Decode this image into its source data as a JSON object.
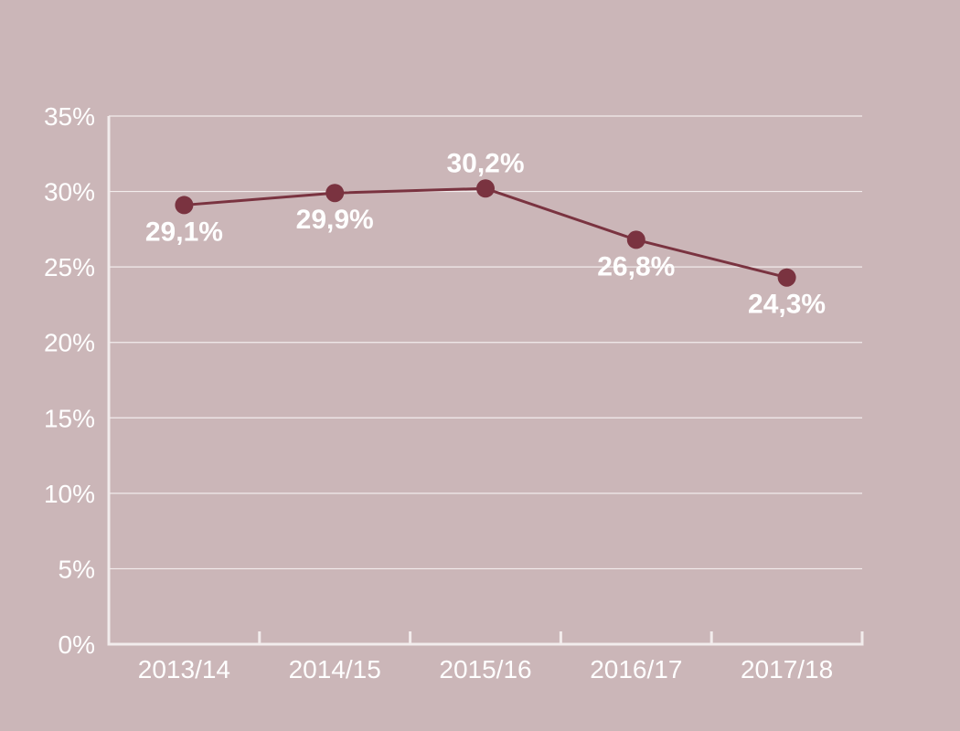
{
  "chart_data": {
    "type": "line",
    "categories": [
      "2013/14",
      "2014/15",
      "2015/16",
      "2016/17",
      "2017/18"
    ],
    "series": [
      {
        "values": [
          29.1,
          29.9,
          30.2,
          26.8,
          24.3
        ],
        "data_labels": [
          "29,1%",
          "29,9%",
          "30,2%",
          "26,8%",
          "24,3%"
        ]
      }
    ],
    "y_ticks": [
      0,
      5,
      10,
      15,
      20,
      25,
      30,
      35
    ],
    "y_tick_labels": [
      "0%",
      "5%",
      "10%",
      "15%",
      "20%",
      "25%",
      "30%",
      "35%"
    ],
    "ylim": [
      0,
      35
    ],
    "grid": true,
    "title": "",
    "xlabel": "",
    "ylabel": ""
  },
  "colors": {
    "background": "#cbb6b8",
    "line": "#7a3340",
    "axis": "#f2ecec",
    "grid": "#f2ecec",
    "text": "#ffffff"
  }
}
